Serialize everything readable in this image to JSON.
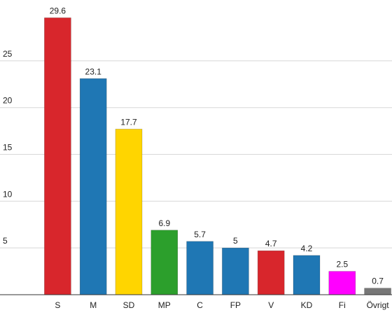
{
  "chart_data": {
    "type": "bar",
    "categories": [
      "S",
      "M",
      "SD",
      "MP",
      "C",
      "FP",
      "V",
      "KD",
      "Fi",
      "Övrigt"
    ],
    "values": [
      29.6,
      23.1,
      17.7,
      6.9,
      5.7,
      5,
      4.7,
      4.2,
      2.5,
      0.7
    ],
    "colors": [
      "#d8262c",
      "#1f77b4",
      "#ffd500",
      "#2c9f2c",
      "#1f77b4",
      "#1f77b4",
      "#d8262c",
      "#1f77b4",
      "#ff00ff",
      "#777777"
    ],
    "ylim": [
      0,
      31.5
    ],
    "yticks": [
      5,
      10,
      15,
      20,
      25
    ],
    "grid": true,
    "value_labels_shown": true
  }
}
